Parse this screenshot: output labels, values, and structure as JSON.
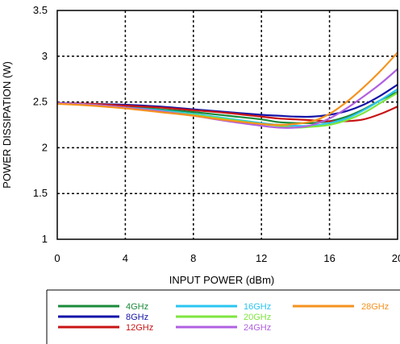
{
  "chart_data": {
    "type": "line",
    "title": "",
    "xlabel": "INPUT POWER (dBm)",
    "ylabel": "POWER DISSIPATION (W)",
    "xlim": [
      0,
      20
    ],
    "ylim": [
      1,
      3.5
    ],
    "xticks": [
      "0",
      "4",
      "8",
      "12",
      "16",
      "20"
    ],
    "yticks": [
      "1",
      "1.5",
      "2",
      "2.5",
      "3",
      "3.5"
    ],
    "grid": true,
    "legend_placement": "bottom",
    "series": [
      {
        "name": "4GHz",
        "color": "#1a8a3a",
        "x": [
          0,
          2,
          4,
          6,
          8,
          10,
          12,
          13,
          14,
          15,
          16,
          17,
          18,
          19,
          20
        ],
        "y": [
          2.49,
          2.47,
          2.45,
          2.42,
          2.39,
          2.35,
          2.31,
          2.28,
          2.27,
          2.27,
          2.29,
          2.34,
          2.42,
          2.52,
          2.61
        ]
      },
      {
        "name": "8GHz",
        "color": "#1414a8",
        "x": [
          0,
          2,
          4,
          6,
          8,
          10,
          12,
          13,
          14,
          15,
          16,
          17,
          18,
          19,
          20
        ],
        "y": [
          2.49,
          2.48,
          2.47,
          2.45,
          2.42,
          2.39,
          2.36,
          2.35,
          2.34,
          2.34,
          2.36,
          2.4,
          2.47,
          2.57,
          2.69
        ]
      },
      {
        "name": "12GHz",
        "color": "#c81414",
        "x": [
          0,
          2,
          4,
          6,
          8,
          10,
          12,
          13,
          14,
          15,
          16,
          17,
          18,
          19,
          20
        ],
        "y": [
          2.49,
          2.48,
          2.46,
          2.44,
          2.41,
          2.38,
          2.34,
          2.32,
          2.31,
          2.3,
          2.29,
          2.29,
          2.31,
          2.37,
          2.45
        ]
      },
      {
        "name": "16GHz",
        "color": "#29c6f0",
        "x": [
          0,
          2,
          4,
          6,
          8,
          10,
          12,
          13,
          14,
          15,
          16,
          17,
          18,
          19,
          20
        ],
        "y": [
          2.49,
          2.47,
          2.44,
          2.41,
          2.37,
          2.32,
          2.27,
          2.25,
          2.24,
          2.24,
          2.27,
          2.32,
          2.41,
          2.52,
          2.64
        ]
      },
      {
        "name": "20GHz",
        "color": "#7ee640",
        "x": [
          0,
          2,
          4,
          6,
          8,
          10,
          12,
          13,
          14,
          15,
          16,
          17,
          18,
          19,
          20
        ],
        "y": [
          2.49,
          2.47,
          2.44,
          2.4,
          2.36,
          2.31,
          2.26,
          2.24,
          2.22,
          2.23,
          2.25,
          2.3,
          2.38,
          2.49,
          2.6
        ]
      },
      {
        "name": "24GHz",
        "color": "#b060e0",
        "x": [
          0,
          2,
          4,
          6,
          8,
          10,
          12,
          13,
          14,
          15,
          16,
          17,
          18,
          19,
          20
        ],
        "y": [
          2.49,
          2.47,
          2.44,
          2.4,
          2.35,
          2.29,
          2.24,
          2.22,
          2.22,
          2.25,
          2.32,
          2.43,
          2.56,
          2.7,
          2.86
        ]
      },
      {
        "name": "28GHz",
        "color": "#f5921e",
        "x": [
          0,
          2,
          4,
          6,
          8,
          10,
          12,
          13,
          14,
          15,
          16,
          17,
          18,
          19,
          20
        ],
        "y": [
          2.48,
          2.46,
          2.43,
          2.39,
          2.35,
          2.3,
          2.26,
          2.25,
          2.26,
          2.29,
          2.37,
          2.5,
          2.66,
          2.84,
          3.04
        ]
      }
    ]
  }
}
